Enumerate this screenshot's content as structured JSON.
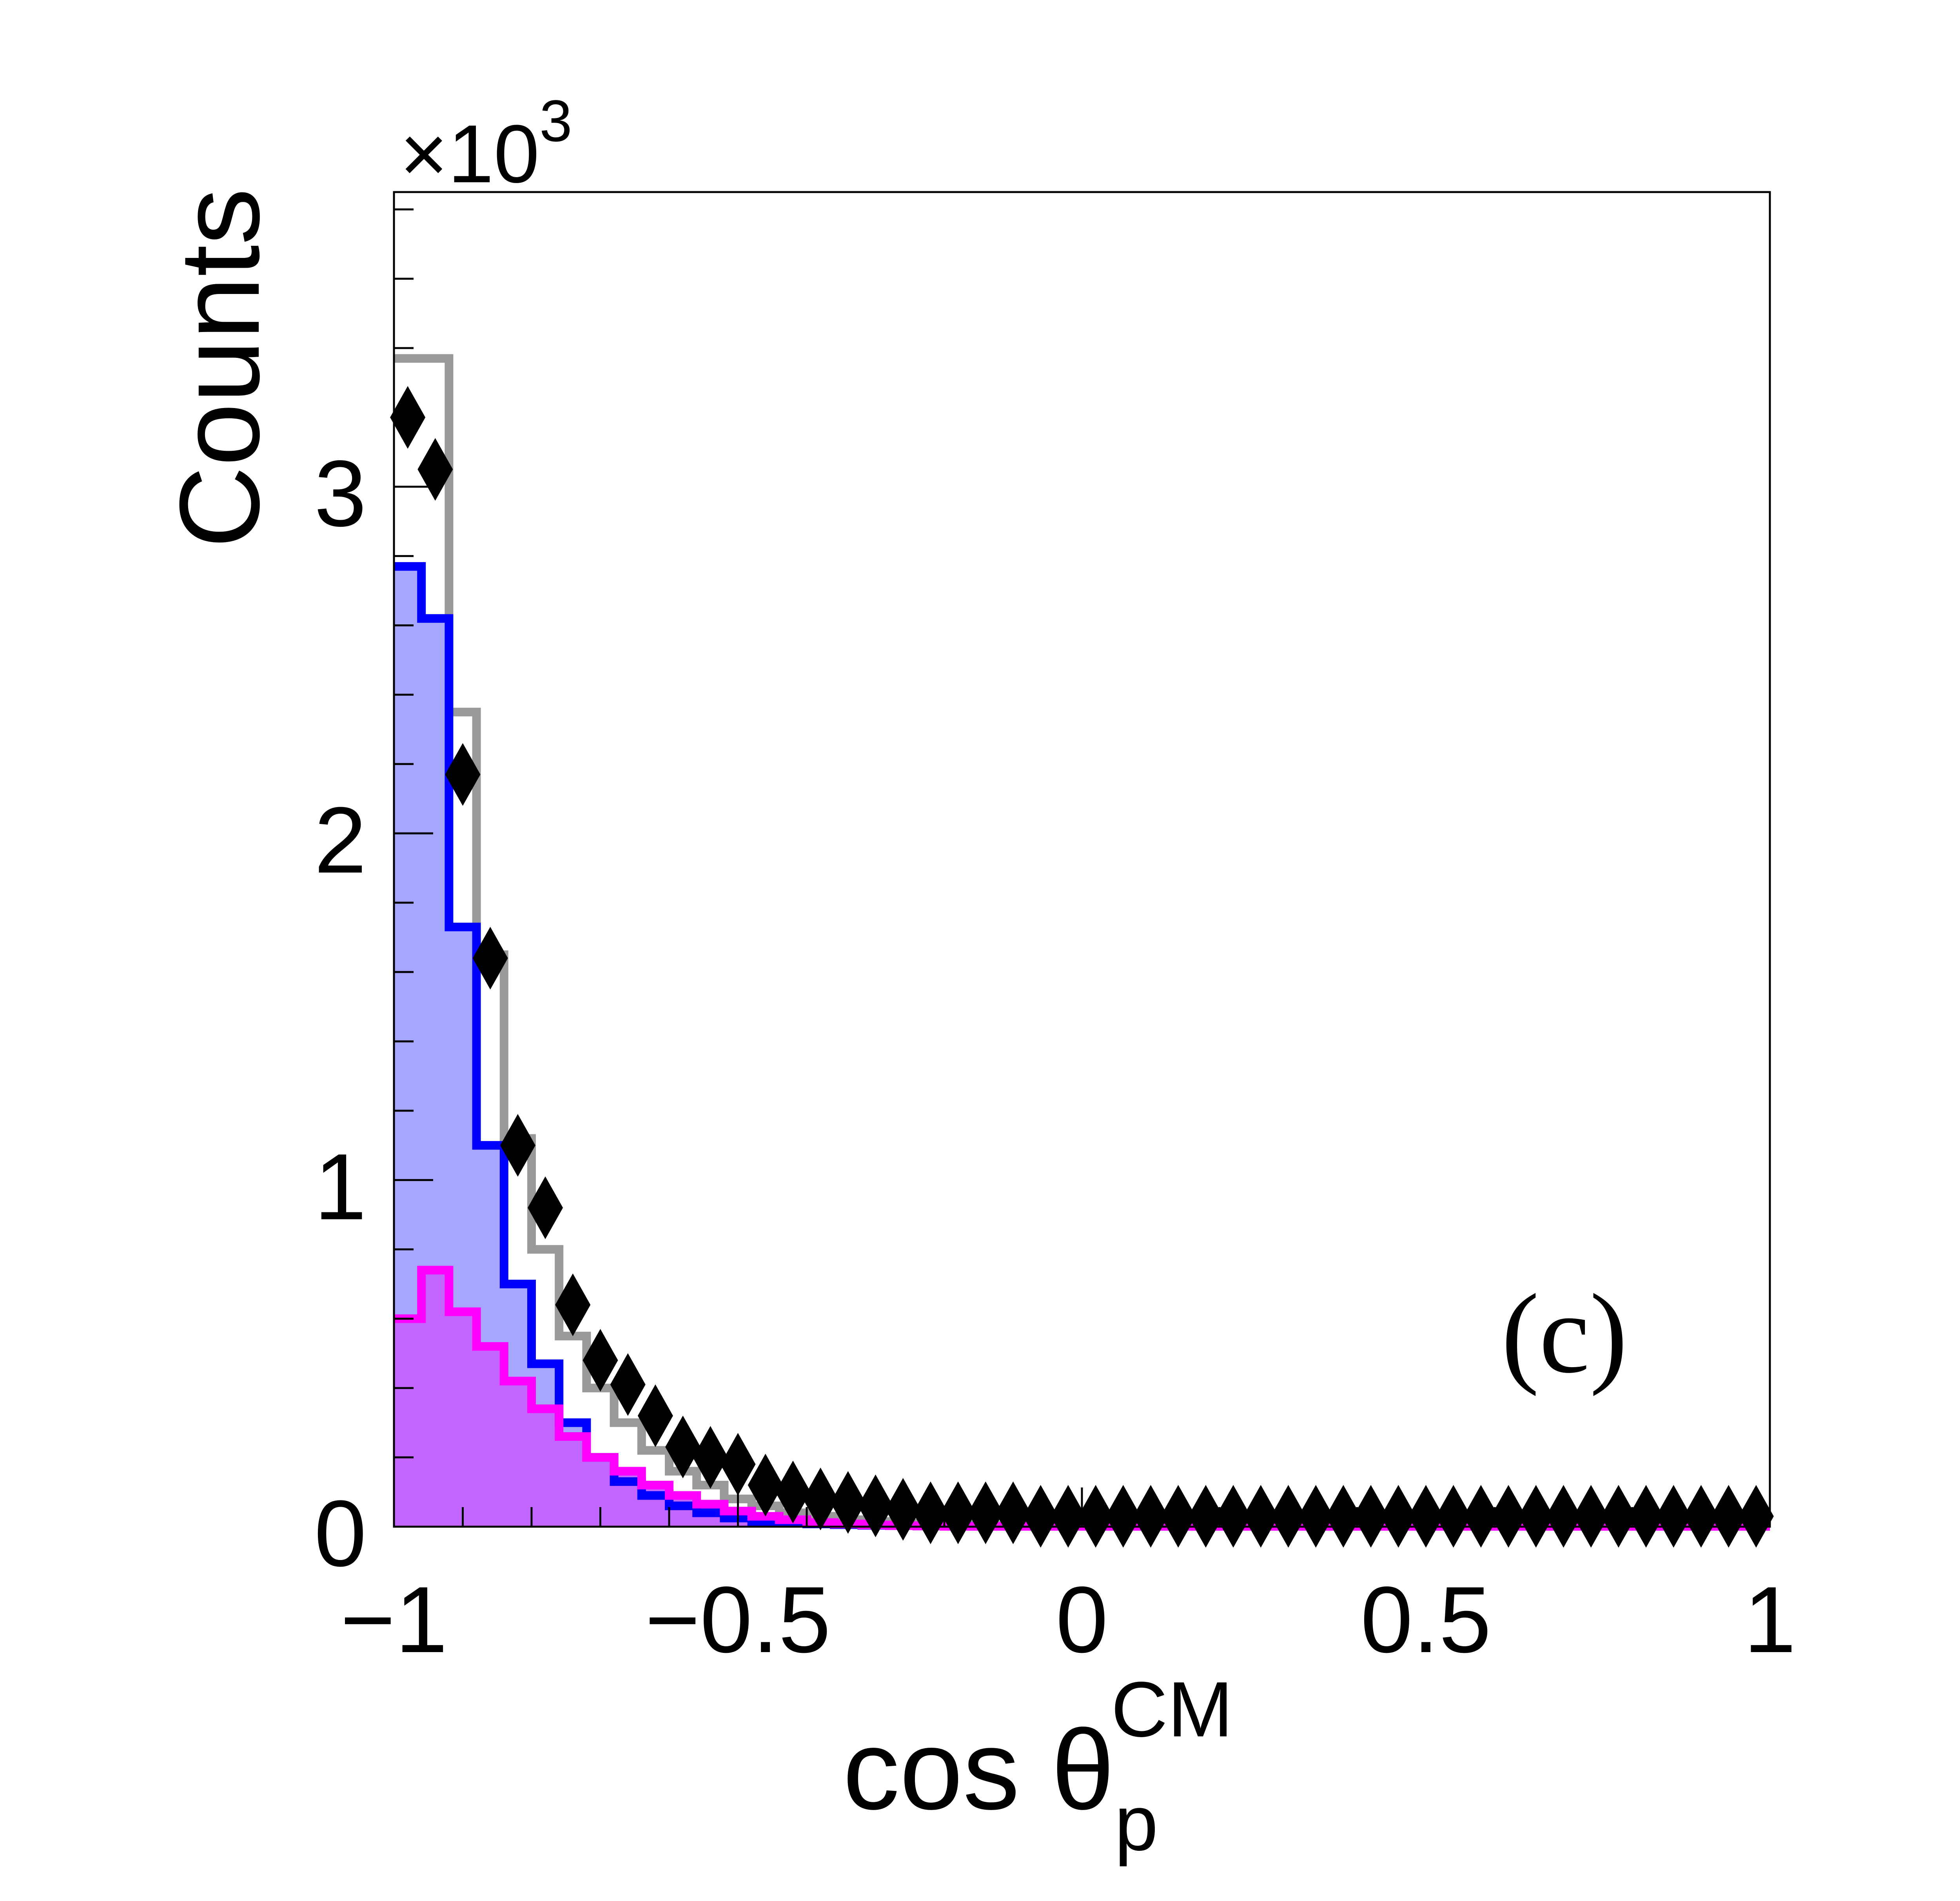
{
  "chart_data": {
    "type": "histogram",
    "panel_label": "(c)",
    "ylabel": "Counts",
    "y_multiplier": "×10",
    "y_multiplier_exp": "3",
    "xlabel_main": "cos θ",
    "xlabel_sub": "p",
    "xlabel_sup": "CM",
    "xlim": [
      -1,
      1
    ],
    "ylim": [
      0,
      3.85
    ],
    "x_ticks": [
      {
        "value": -1,
        "label": "−1"
      },
      {
        "value": -0.5,
        "label": "−0.5"
      },
      {
        "value": 0,
        "label": "0"
      },
      {
        "value": 0.5,
        "label": "0.5"
      },
      {
        "value": 1,
        "label": "1"
      }
    ],
    "y_ticks": [
      {
        "value": 0,
        "label": "0"
      },
      {
        "value": 1,
        "label": "1"
      },
      {
        "value": 2,
        "label": "2"
      },
      {
        "value": 3,
        "label": "3"
      }
    ],
    "bin_width": 0.04,
    "series": [
      {
        "color": "#999999",
        "fill": "none",
        "values": [
          3.37,
          3.37,
          2.35,
          1.65,
          1.12,
          0.8,
          0.55,
          0.4,
          0.3,
          0.22,
          0.16,
          0.12,
          0.08,
          0.06,
          0.04,
          0.03,
          0.02,
          0.015,
          0.01,
          0.008,
          0.006,
          0.005,
          0.004,
          0.003,
          0.002,
          0.002,
          0.001,
          0.001,
          0.001,
          0.001,
          0.001,
          0.001,
          0.001,
          0.001,
          0.001,
          0.001,
          0.001,
          0.001,
          0.001,
          0.001,
          0.001,
          0.001,
          0.001,
          0.001,
          0.001,
          0.001,
          0.001,
          0.001,
          0.001,
          0.001
        ]
      },
      {
        "color": "#0000ff",
        "fill": "#a6a6ff",
        "values": [
          2.77,
          2.62,
          1.73,
          1.1,
          0.7,
          0.47,
          0.3,
          0.2,
          0.13,
          0.09,
          0.06,
          0.04,
          0.025,
          0.015,
          0.01,
          0.008,
          0.006,
          0.004,
          0.003,
          0.002,
          0.0015,
          0.001,
          0.001,
          0.001,
          0.001,
          0.001,
          0.001,
          0.001,
          0.001,
          0.001,
          0.001,
          0.001,
          0.001,
          0.001,
          0.001,
          0.001,
          0.001,
          0.001,
          0.001,
          0.001,
          0.001,
          0.001,
          0.001,
          0.001,
          0.001,
          0.001,
          0.001,
          0.001,
          0.001,
          0.001
        ]
      },
      {
        "color": "#ff00ff",
        "fill": "#c266ff",
        "values": [
          0.6,
          0.74,
          0.62,
          0.52,
          0.42,
          0.34,
          0.26,
          0.2,
          0.16,
          0.12,
          0.09,
          0.065,
          0.045,
          0.03,
          0.02,
          0.012,
          0.008,
          0.005,
          0.003,
          0.002,
          0.001,
          0.001,
          0.001,
          0.001,
          0.001,
          0.001,
          0.001,
          0.001,
          0.001,
          0.001,
          0.001,
          0.001,
          0.001,
          0.001,
          0.001,
          0.001,
          0.001,
          0.001,
          0.001,
          0.001,
          0.001,
          0.001,
          0.001,
          0.001,
          0.001,
          0.001,
          0.001,
          0.001,
          0.001,
          0.001
        ]
      },
      {
        "color": "#000000",
        "marker": "diamond",
        "x": [
          -0.98,
          -0.94,
          -0.9,
          -0.86,
          -0.82,
          -0.78,
          -0.74,
          -0.7,
          -0.66,
          -0.62,
          -0.58,
          -0.54,
          -0.5,
          -0.46,
          -0.42,
          -0.38,
          -0.34,
          -0.3,
          -0.26,
          -0.22,
          -0.18,
          -0.14,
          -0.1,
          -0.06,
          -0.02,
          0.02,
          0.06,
          0.1,
          0.14,
          0.18,
          0.22,
          0.26,
          0.3,
          0.34,
          0.38,
          0.42,
          0.46,
          0.5,
          0.54,
          0.58,
          0.62,
          0.66,
          0.7,
          0.74,
          0.78,
          0.82,
          0.86,
          0.9,
          0.94,
          0.98
        ],
        "y": [
          3.2,
          3.05,
          2.17,
          1.64,
          1.1,
          0.92,
          0.64,
          0.48,
          0.41,
          0.32,
          0.23,
          0.2,
          0.18,
          0.12,
          0.1,
          0.08,
          0.07,
          0.06,
          0.05,
          0.04,
          0.04,
          0.04,
          0.04,
          0.03,
          0.03,
          0.03,
          0.03,
          0.03,
          0.03,
          0.03,
          0.03,
          0.03,
          0.03,
          0.03,
          0.03,
          0.03,
          0.03,
          0.03,
          0.03,
          0.03,
          0.03,
          0.03,
          0.03,
          0.03,
          0.03,
          0.03,
          0.03,
          0.03,
          0.03,
          0.03
        ]
      }
    ]
  }
}
